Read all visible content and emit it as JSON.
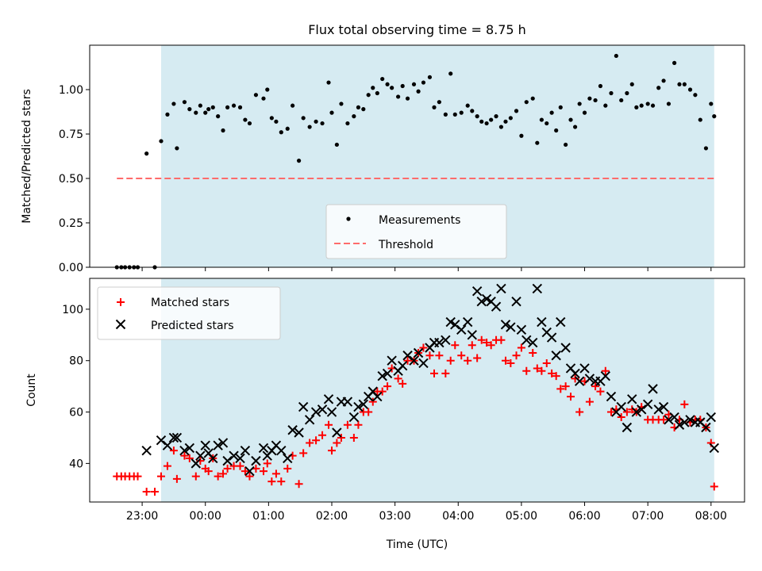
{
  "colors": {
    "band": "#add8e6",
    "threshold": "#ff6b6b",
    "matched": "#ff0000",
    "predicted": "#000000",
    "measurement": "#000000"
  },
  "shared_x_axis": {
    "label": "Time (UTC)",
    "tick_labels": [
      "23:00",
      "00:00",
      "01:00",
      "02:00",
      "03:00",
      "04:00",
      "05:00",
      "06:00",
      "07:00",
      "08:00"
    ],
    "tick_hours_since_midnight": [
      -1,
      0,
      1,
      2,
      3,
      4,
      5,
      6,
      7,
      8
    ],
    "range_hours": [
      -1.83,
      8.53
    ],
    "observing_window_hours": [
      -0.7,
      8.05
    ]
  },
  "chart_data": [
    {
      "type": "scatter",
      "title": "Flux total observing time = 8.75 h",
      "ylabel": "Matched/Predicted stars",
      "ylim": [
        0,
        1.25
      ],
      "yticks": [
        "0.00",
        "0.25",
        "0.50",
        "0.75",
        "1.00"
      ],
      "ytick_values": [
        0,
        0.25,
        0.5,
        0.75,
        1.0
      ],
      "threshold": 0.5,
      "threshold_x": [
        -1.4,
        8.05
      ],
      "legend": [
        "Measurements",
        "Threshold"
      ],
      "legend_position": "lower-center",
      "series": [
        {
          "name": "Measurements",
          "x": [
            -1.4,
            -1.33,
            -1.27,
            -1.2,
            -1.13,
            -1.07,
            -0.93,
            -0.8,
            -0.7,
            -0.6,
            -0.5,
            -0.45,
            -0.33,
            -0.25,
            -0.15,
            -0.08,
            0.0,
            0.05,
            0.12,
            0.2,
            0.28,
            0.35,
            0.45,
            0.55,
            0.63,
            0.7,
            0.8,
            0.92,
            0.98,
            1.05,
            1.12,
            1.2,
            1.3,
            1.38,
            1.48,
            1.55,
            1.65,
            1.75,
            1.85,
            1.95,
            2.0,
            2.08,
            2.15,
            2.25,
            2.35,
            2.42,
            2.5,
            2.58,
            2.65,
            2.72,
            2.8,
            2.88,
            2.95,
            3.05,
            3.12,
            3.2,
            3.3,
            3.37,
            3.45,
            3.55,
            3.62,
            3.7,
            3.8,
            3.88,
            3.95,
            4.05,
            4.15,
            4.22,
            4.3,
            4.37,
            4.45,
            4.52,
            4.6,
            4.68,
            4.75,
            4.83,
            4.92,
            5.0,
            5.08,
            5.18,
            5.25,
            5.32,
            5.4,
            5.48,
            5.55,
            5.62,
            5.7,
            5.78,
            5.85,
            5.92,
            6.0,
            6.08,
            6.17,
            6.25,
            6.33,
            6.42,
            6.5,
            6.58,
            6.67,
            6.75,
            6.82,
            6.9,
            7.0,
            7.08,
            7.17,
            7.25,
            7.33,
            7.42,
            7.5,
            7.58,
            7.67,
            7.75,
            7.83,
            7.92,
            8.0,
            8.05
          ],
          "y": [
            0.0,
            0.0,
            0.0,
            0.0,
            0.0,
            0.0,
            0.64,
            0.0,
            0.71,
            0.86,
            0.92,
            0.67,
            0.93,
            0.89,
            0.87,
            0.91,
            0.87,
            0.89,
            0.9,
            0.85,
            0.77,
            0.9,
            0.91,
            0.9,
            0.83,
            0.81,
            0.97,
            0.95,
            1.0,
            0.84,
            0.82,
            0.76,
            0.78,
            0.91,
            0.6,
            0.84,
            0.79,
            0.82,
            0.81,
            1.04,
            0.87,
            0.69,
            0.92,
            0.81,
            0.85,
            0.9,
            0.89,
            0.97,
            1.01,
            0.98,
            1.06,
            1.03,
            1.01,
            0.96,
            1.02,
            0.95,
            1.03,
            0.99,
            1.04,
            1.07,
            0.9,
            0.93,
            0.86,
            1.09,
            0.86,
            0.87,
            0.91,
            0.88,
            0.85,
            0.82,
            0.81,
            0.83,
            0.85,
            0.79,
            0.82,
            0.84,
            0.88,
            0.74,
            0.93,
            0.95,
            0.7,
            0.83,
            0.81,
            0.87,
            0.77,
            0.9,
            0.69,
            0.83,
            0.79,
            0.92,
            0.87,
            0.95,
            0.94,
            1.02,
            0.91,
            0.98,
            1.19,
            0.94,
            0.98,
            1.03,
            0.9,
            0.91,
            0.92,
            0.91,
            1.01,
            1.05,
            0.92,
            1.15,
            1.03,
            1.03,
            1.0,
            0.97,
            0.83,
            0.67,
            0.92,
            0.85
          ]
        }
      ]
    },
    {
      "type": "scatter",
      "title": "",
      "xlabel": "Time (UTC)",
      "ylabel": "Count",
      "ylim": [
        25,
        112
      ],
      "yticks": [
        "40",
        "60",
        "80",
        "100"
      ],
      "ytick_values": [
        40,
        60,
        80,
        100
      ],
      "legend": [
        "Matched stars",
        "Predicted stars"
      ],
      "legend_position": "upper-left",
      "series": [
        {
          "name": "Matched stars",
          "marker": "+",
          "x": [
            -1.4,
            -1.33,
            -1.27,
            -1.2,
            -1.13,
            -1.07,
            -0.93,
            -0.8,
            -0.7,
            -0.6,
            -0.5,
            -0.45,
            -0.33,
            -0.25,
            -0.15,
            -0.08,
            0.0,
            0.05,
            0.12,
            0.2,
            0.28,
            0.35,
            0.45,
            0.55,
            0.63,
            0.7,
            0.8,
            0.92,
            0.98,
            1.05,
            1.12,
            1.2,
            1.3,
            1.38,
            1.48,
            1.55,
            1.65,
            1.75,
            1.85,
            1.95,
            2.0,
            2.08,
            2.15,
            2.25,
            2.35,
            2.42,
            2.5,
            2.58,
            2.65,
            2.72,
            2.8,
            2.88,
            2.95,
            3.05,
            3.12,
            3.2,
            3.3,
            3.37,
            3.45,
            3.55,
            3.62,
            3.7,
            3.8,
            3.88,
            3.95,
            4.05,
            4.15,
            4.22,
            4.3,
            4.37,
            4.45,
            4.52,
            4.6,
            4.68,
            4.75,
            4.83,
            4.92,
            5.0,
            5.08,
            5.18,
            5.25,
            5.32,
            5.4,
            5.48,
            5.55,
            5.62,
            5.7,
            5.78,
            5.85,
            5.92,
            6.0,
            6.08,
            6.17,
            6.25,
            6.33,
            6.42,
            6.5,
            6.58,
            6.67,
            6.75,
            6.82,
            6.9,
            7.0,
            7.08,
            7.17,
            7.25,
            7.33,
            7.42,
            7.5,
            7.58,
            7.67,
            7.75,
            7.83,
            7.92,
            8.0,
            8.05
          ],
          "y": [
            35,
            35,
            35,
            35,
            35,
            35,
            29,
            29,
            35,
            39,
            45,
            34,
            43,
            42,
            35,
            41,
            38,
            37,
            42,
            35,
            36,
            38,
            39,
            39,
            37,
            35,
            38,
            37,
            40,
            33,
            36,
            33,
            38,
            43,
            32,
            44,
            48,
            49,
            51,
            55,
            45,
            48,
            50,
            55,
            50,
            55,
            60,
            60,
            64,
            68,
            68,
            70,
            77,
            73,
            71,
            80,
            80,
            83,
            85,
            82,
            75,
            82,
            75,
            80,
            86,
            82,
            80,
            86,
            81,
            88,
            87,
            86,
            88,
            88,
            80,
            79,
            82,
            85,
            76,
            83,
            77,
            76,
            79,
            75,
            74,
            69,
            70,
            66,
            73,
            60,
            72,
            64,
            70,
            68,
            76,
            60,
            61,
            58,
            60,
            61,
            60,
            62,
            57,
            57,
            57,
            57,
            59,
            54,
            57,
            63,
            56,
            57,
            57,
            54,
            48,
            31
          ]
        },
        {
          "name": "Predicted stars",
          "marker": "x",
          "x": [
            -0.93,
            -0.7,
            -0.6,
            -0.5,
            -0.45,
            -0.33,
            -0.25,
            -0.15,
            -0.08,
            0.0,
            0.05,
            0.12,
            0.2,
            0.28,
            0.35,
            0.45,
            0.55,
            0.63,
            0.7,
            0.8,
            0.92,
            0.98,
            1.05,
            1.12,
            1.2,
            1.3,
            1.38,
            1.48,
            1.55,
            1.65,
            1.75,
            1.85,
            1.95,
            2.0,
            2.08,
            2.15,
            2.25,
            2.35,
            2.42,
            2.5,
            2.58,
            2.65,
            2.72,
            2.8,
            2.88,
            2.95,
            3.05,
            3.12,
            3.2,
            3.3,
            3.37,
            3.45,
            3.55,
            3.62,
            3.7,
            3.8,
            3.88,
            3.95,
            4.05,
            4.15,
            4.22,
            4.3,
            4.37,
            4.45,
            4.52,
            4.6,
            4.68,
            4.75,
            4.83,
            4.92,
            5.0,
            5.08,
            5.18,
            5.25,
            5.32,
            5.4,
            5.48,
            5.55,
            5.62,
            5.7,
            5.78,
            5.85,
            5.92,
            6.0,
            6.08,
            6.17,
            6.25,
            6.33,
            6.42,
            6.5,
            6.58,
            6.67,
            6.75,
            6.82,
            6.9,
            7.0,
            7.08,
            7.17,
            7.25,
            7.33,
            7.42,
            7.5,
            7.58,
            7.67,
            7.75,
            7.83,
            7.92,
            8.0,
            8.05
          ],
          "y": [
            45,
            49,
            47,
            50,
            50,
            45,
            46,
            40,
            43,
            47,
            44,
            42,
            47,
            48,
            41,
            43,
            42,
            45,
            37,
            41,
            46,
            43,
            45,
            47,
            45,
            42,
            53,
            52,
            62,
            57,
            60,
            61,
            65,
            60,
            52,
            64,
            64,
            58,
            62,
            63,
            66,
            68,
            66,
            74,
            75,
            80,
            76,
            78,
            82,
            80,
            83,
            79,
            85,
            87,
            87,
            88,
            95,
            94,
            92,
            95,
            90,
            107,
            103,
            104,
            103,
            101,
            108,
            94,
            93,
            103,
            92,
            88,
            87,
            108,
            95,
            91,
            89,
            82,
            95,
            85,
            77,
            75,
            72,
            77,
            73,
            72,
            72,
            74,
            66,
            60,
            62,
            54,
            65,
            60,
            61,
            63,
            69,
            61,
            62,
            57,
            58,
            55,
            56,
            57,
            56,
            56,
            54,
            58,
            46
          ]
        }
      ]
    }
  ]
}
